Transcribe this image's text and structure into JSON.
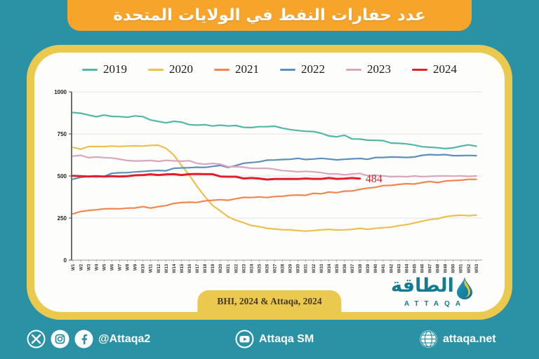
{
  "title": "عدد حفارات النفط في الولايات المتحدة",
  "caption": "BHI, 2024 & Attaqa, 2024",
  "logo": {
    "arabic": "الطاقة",
    "latin": "ATTAQA"
  },
  "footer": {
    "social_handle": "@Attaqa2",
    "sm_label": "Attaqa SM",
    "website": "attaqa.net"
  },
  "colors": {
    "background": "#2b92a6",
    "banner": "#f7a42a",
    "card_border": "#ebc94e",
    "card_face": "#fdfdfc",
    "annotation_red": "#c0272f",
    "logo_teal": "#137b92"
  },
  "chart_data": {
    "type": "line",
    "title": "عدد حفارات النفط في الولايات المتحدة",
    "xlabel": "",
    "ylabel": "",
    "ylim": [
      0,
      1000
    ],
    "y_ticks": [
      0,
      250,
      500,
      750,
      1000
    ],
    "grid": true,
    "legend_position": "top",
    "annotation": {
      "text": "484",
      "series": "2024",
      "week": 38,
      "value": 484
    },
    "x_labels": [
      "W1",
      "W2",
      "W3",
      "W4",
      "W5",
      "W6",
      "W7",
      "W8",
      "W9",
      "W10",
      "W11",
      "W12",
      "W13",
      "W14",
      "W15",
      "W16",
      "W17",
      "W18",
      "W19",
      "W20",
      "W21",
      "W22",
      "W23",
      "W24",
      "W25",
      "W26",
      "W27",
      "W28",
      "W29",
      "W30",
      "W31",
      "W32",
      "W33",
      "W34",
      "W35",
      "W36",
      "W37",
      "W38",
      "W39",
      "W40",
      "W41",
      "W42",
      "W43",
      "W44",
      "W45",
      "W46",
      "W47",
      "W48",
      "W49",
      "W50",
      "W51",
      "W52",
      "W53"
    ],
    "series": [
      {
        "name": "2019",
        "color": "#53b7a3",
        "values": [
          877,
          873,
          862,
          852,
          862,
          854,
          853,
          849,
          857,
          853,
          833,
          824,
          816,
          825,
          820,
          805,
          802,
          805,
          797,
          802,
          797,
          800,
          789,
          788,
          793,
          793,
          796,
          784,
          776,
          770,
          766,
          764,
          754,
          738,
          733,
          742,
          720,
          719,
          713,
          712,
          710,
          696,
          694,
          691,
          684,
          674,
          671,
          668,
          663,
          667,
          677,
          685,
          677
        ]
      },
      {
        "name": "2020",
        "color": "#edc04d",
        "values": [
          670,
          659,
          675,
          676,
          675,
          678,
          676,
          678,
          679,
          678,
          682,
          683,
          664,
          624,
          562,
          504,
          438,
          378,
          325,
          292,
          258,
          237,
          222,
          206,
          199,
          189,
          185,
          181,
          180,
          176,
          172,
          176,
          180,
          183,
          179,
          180,
          183,
          189,
          183,
          189,
          193,
          196,
          205,
          211,
          221,
          231,
          241,
          246,
          258,
          264,
          267,
          264,
          267
        ]
      },
      {
        "name": "2021",
        "color": "#f0874f",
        "values": [
          275,
          289,
          295,
          299,
          305,
          306,
          305,
          309,
          310,
          318,
          309,
          318,
          324,
          337,
          342,
          344,
          343,
          352,
          356,
          359,
          356,
          365,
          373,
          372,
          376,
          372,
          378,
          380,
          385,
          387,
          385,
          397,
          394,
          405,
          401,
          410,
          411,
          421,
          428,
          433,
          443,
          444,
          450,
          454,
          452,
          461,
          467,
          461,
          470,
          473,
          475,
          480,
          480
        ]
      },
      {
        "name": "2022",
        "color": "#5d8fba",
        "values": [
          481,
          492,
          497,
          495,
          497,
          516,
          519,
          520,
          524,
          527,
          531,
          533,
          531,
          546,
          548,
          549,
          552,
          551,
          557,
          563,
          551,
          562,
          576,
          580,
          584,
          594,
          595,
          598,
          599,
          605,
          598,
          601,
          605,
          601,
          596,
          599,
          602,
          604,
          599,
          610,
          610,
          613,
          612,
          610,
          613,
          623,
          627,
          625,
          627,
          621,
          621,
          622,
          621
        ]
      },
      {
        "name": "2023",
        "color": "#d9a6bf",
        "values": [
          618,
          623,
          609,
          613,
          609,
          607,
          600,
          592,
          589,
          590,
          592,
          587,
          593,
          590,
          588,
          591,
          575,
          570,
          575,
          570,
          555,
          556,
          552,
          546,
          545,
          546,
          540,
          532,
          529,
          525,
          528,
          525,
          520,
          512,
          513,
          507,
          512,
          515,
          502,
          504,
          501,
          496,
          497,
          495,
          500,
          496,
          498,
          500,
          501,
          499,
          501,
          498,
          500
        ]
      },
      {
        "name": "2024",
        "color": "#e11f2c",
        "values": [
          501,
          499,
          497,
          499,
          497,
          499,
          497,
          499,
          504,
          506,
          510,
          506,
          509,
          511,
          506,
          511,
          512,
          511,
          511,
          497,
          496,
          496,
          485,
          488,
          485,
          479,
          482,
          482,
          483,
          482,
          485,
          483,
          483,
          488,
          483,
          484,
          488,
          484
        ]
      }
    ]
  }
}
